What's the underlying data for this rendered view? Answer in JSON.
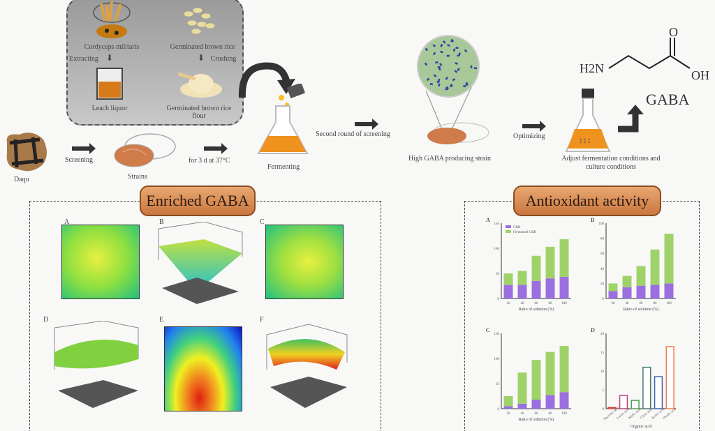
{
  "top_box": {
    "cordyceps": "Cordyceps militaris",
    "brown_rice": "Germinated brown rice",
    "extracting": "Extracting",
    "crushing": "Crushing",
    "leach_liquor": "Leach liquor",
    "flour": "Germinated brown rice flour"
  },
  "process": {
    "daqu": "Daqu",
    "screening": "Screening",
    "strains": "Strains",
    "incubation": "for 3 d at 37°C",
    "fermenting": "Fermenting",
    "second_round": "Second round of screening",
    "high_strain": "High GABA producing strain",
    "optimizing": "Optimizing",
    "adjust": "Adjust fermentation conditions and culture conditions"
  },
  "molecule": {
    "h2n": "H2N",
    "o": "O",
    "oh": "OH",
    "name": "GABA"
  },
  "sections": {
    "enriched": "Enriched GABA",
    "antioxidant": "Antioxidant activity"
  },
  "panel_letters": [
    "A",
    "B",
    "C",
    "D",
    "E",
    "F"
  ],
  "chart_data": [
    {
      "type": "bar",
      "panel": "A",
      "categories": [
        "20",
        "40",
        "60",
        "80",
        "100"
      ],
      "xlabel": "Ratio of solution (%)",
      "ylim": [
        0,
        150
      ],
      "ticks": [
        0,
        50,
        100,
        150
      ],
      "series": [
        {
          "name": "GBR",
          "color": "#9b6fe0",
          "values": [
            27,
            27,
            35,
            40,
            43
          ]
        },
        {
          "name": "Fermented GBR",
          "color": "#9fd36a",
          "values": [
            23,
            28,
            50,
            63,
            75
          ]
        }
      ]
    },
    {
      "type": "bar",
      "panel": "B",
      "categories": [
        "20",
        "40",
        "60",
        "80",
        "100"
      ],
      "xlabel": "Ratio of solution (%)",
      "ylim": [
        0,
        100
      ],
      "ticks": [
        0,
        20,
        40,
        60,
        80,
        100
      ],
      "series": [
        {
          "name": "GBR",
          "color": "#9b6fe0",
          "values": [
            10,
            15,
            17,
            18,
            20
          ]
        },
        {
          "name": "Fermented GBR",
          "color": "#9fd36a",
          "values": [
            10,
            15,
            26,
            47,
            66
          ]
        }
      ]
    },
    {
      "type": "bar",
      "panel": "C",
      "categories": [
        "20",
        "40",
        "60",
        "80",
        "100"
      ],
      "xlabel": "Ratio of solution (%)",
      "ylim": [
        0,
        150
      ],
      "ticks": [
        0,
        50,
        100,
        150
      ],
      "series": [
        {
          "name": "GBR",
          "color": "#9b6fe0",
          "values": [
            5,
            10,
            18,
            27,
            33
          ]
        },
        {
          "name": "Fermented GBR",
          "color": "#9fd36a",
          "values": [
            20,
            62,
            79,
            86,
            92
          ]
        }
      ]
    },
    {
      "type": "bar",
      "panel": "D",
      "categories": [
        "Succinic acid",
        "Lactic acid",
        "Malic acid",
        "Citric acid",
        "Acetic acid",
        "Oxalic acid"
      ],
      "xlabel": "Organic acid",
      "ylim": [
        0,
        20
      ],
      "ticks": [
        0,
        5,
        10,
        15,
        20
      ],
      "colors": [
        "#d04040",
        "#c04080",
        "#50a050",
        "#408070",
        "#4060b0",
        "#f08050"
      ],
      "values": [
        0.3,
        3.5,
        2.2,
        11,
        8.5,
        16.5
      ]
    }
  ]
}
